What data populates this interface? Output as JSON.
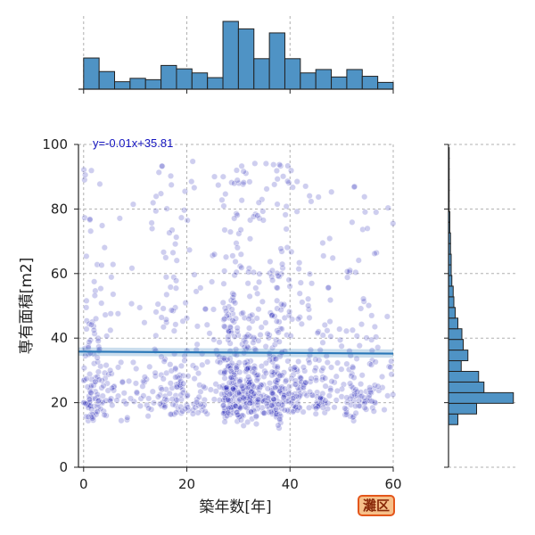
{
  "chart_data": {
    "type": "scatter",
    "xlabel": "築年数[年]",
    "ylabel": "専有面積[m2]",
    "xlim": [
      -1,
      60
    ],
    "ylim": [
      0,
      100
    ],
    "xticks": [
      0,
      20,
      40,
      60
    ],
    "yticks": [
      0,
      20,
      40,
      60,
      80,
      100
    ],
    "grid": true,
    "regression": {
      "label": "y=-0.01x+35.81",
      "slope": -0.01,
      "intercept": 35.81
    },
    "point_count_estimate": 1200,
    "point_color": "#1f1fb4",
    "line_color": "#2a78b8",
    "hist_color": "#4f93c5",
    "top_histogram": {
      "bin_start": 0,
      "bin_width": 3,
      "relative_heights": [
        0.46,
        0.26,
        0.11,
        0.16,
        0.14,
        0.35,
        0.3,
        0.24,
        0.17,
        1.0,
        0.89,
        0.45,
        0.83,
        0.45,
        0.24,
        0.29,
        0.18,
        0.29,
        0.19,
        0.1
      ]
    },
    "right_histogram": {
      "bin_start": 0,
      "bin_width": 3.3,
      "relative_widths": [
        0.0,
        0.0,
        0.0,
        0.0,
        0.14,
        0.42,
        0.97,
        0.53,
        0.45,
        0.19,
        0.29,
        0.22,
        0.2,
        0.14,
        0.1,
        0.08,
        0.07,
        0.05,
        0.04,
        0.04,
        0.03,
        0.03,
        0.02,
        0.02,
        0.01,
        0.01,
        0.01,
        0.01,
        0.01,
        0.01
      ]
    }
  },
  "badge": {
    "label": "灘区"
  }
}
